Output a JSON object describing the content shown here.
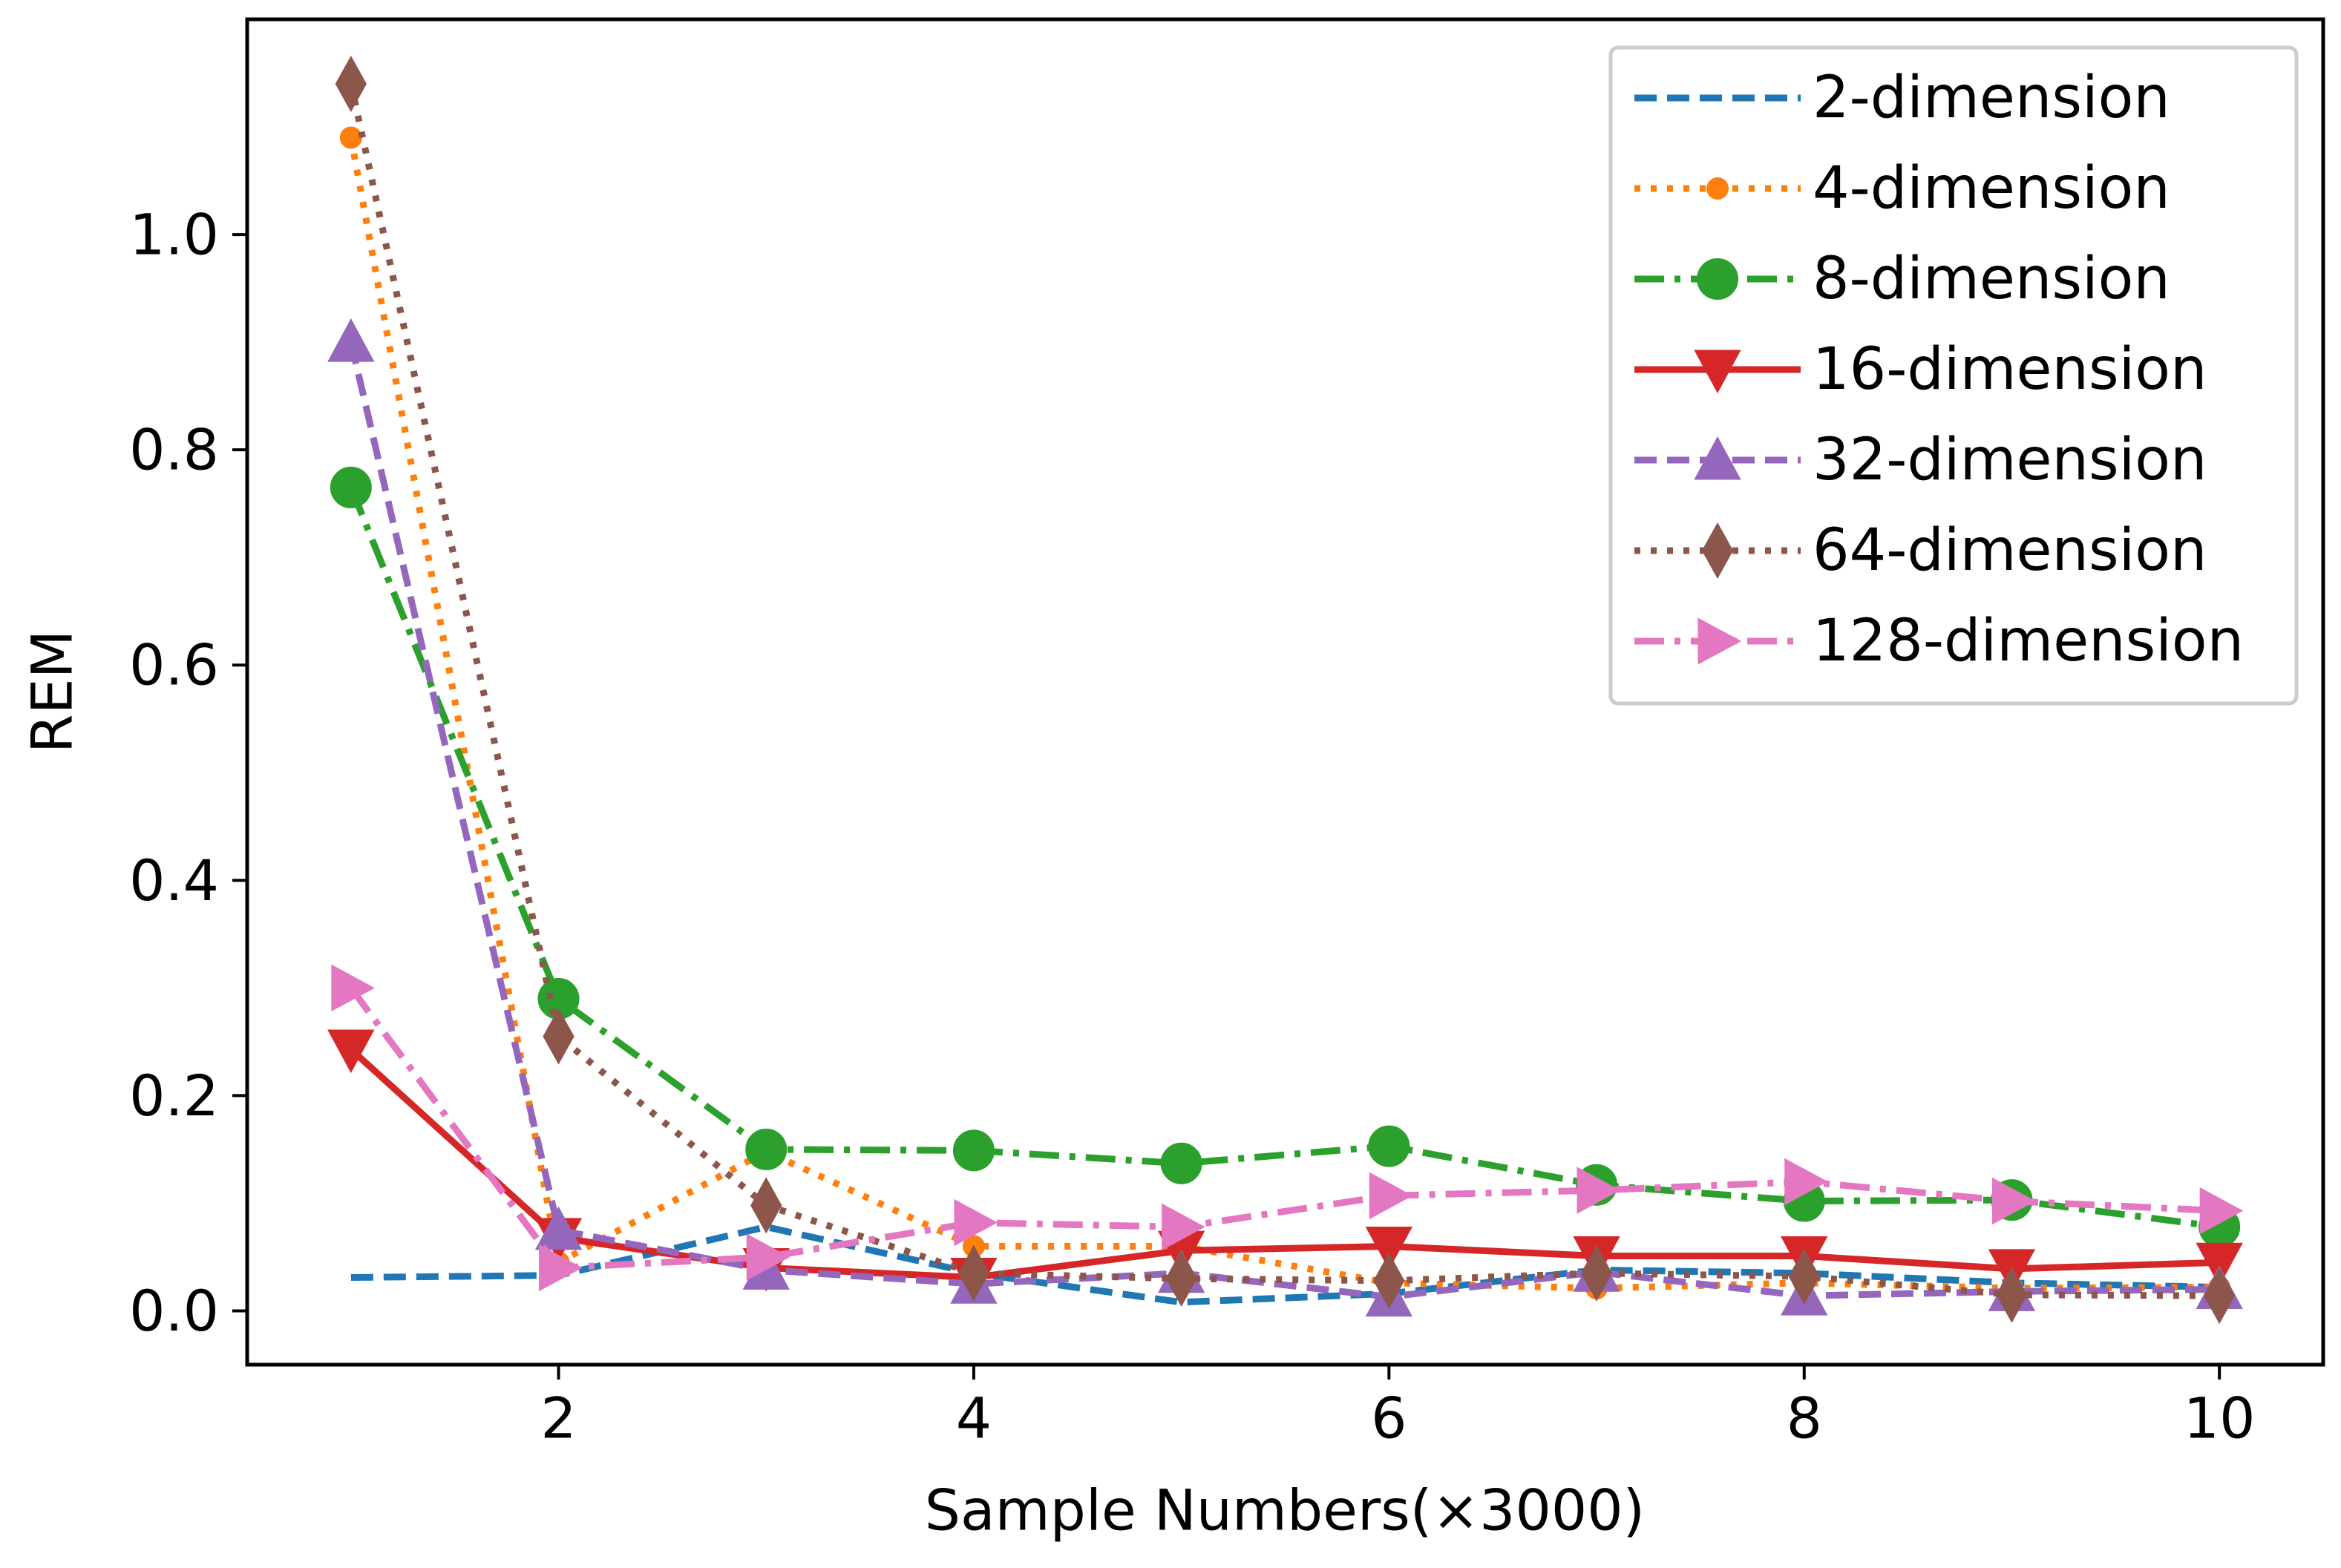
{
  "chart_data": {
    "type": "line",
    "title": "",
    "xlabel": "Sample Numbers(×3000)",
    "ylabel": "REM",
    "x": [
      1,
      2,
      3,
      4,
      5,
      6,
      7,
      8,
      9,
      10
    ],
    "xlim": [
      0.5,
      10.5
    ],
    "ylim": [
      -0.05,
      1.2
    ],
    "xticks": [
      2,
      4,
      6,
      8,
      10
    ],
    "xtick_labels": [
      "2",
      "4",
      "6",
      "8",
      "10"
    ],
    "yticks": [
      0.0,
      0.2,
      0.4,
      0.6,
      0.8,
      1.0
    ],
    "ytick_labels": [
      "0.0",
      "0.2",
      "0.4",
      "0.6",
      "0.8",
      "1.0"
    ],
    "grid": false,
    "legend_position": "top-right",
    "series": [
      {
        "name": "2-dimension",
        "color": "#1f77b4",
        "linestyle": "dashed",
        "marker": "none",
        "values": [
          0.031,
          0.033,
          0.078,
          0.035,
          0.008,
          0.016,
          0.038,
          0.035,
          0.026,
          0.022
        ]
      },
      {
        "name": "4-dimension",
        "color": "#ff7f0e",
        "linestyle": "dotted",
        "marker": "point",
        "values": [
          1.09,
          0.045,
          0.148,
          0.06,
          0.06,
          0.026,
          0.021,
          0.026,
          0.021,
          0.022
        ]
      },
      {
        "name": "8-dimension",
        "color": "#2ca02c",
        "linestyle": "dashdot",
        "marker": "circle",
        "values": [
          0.765,
          0.29,
          0.15,
          0.149,
          0.137,
          0.153,
          0.117,
          0.102,
          0.103,
          0.078
        ]
      },
      {
        "name": "16-dimension",
        "color": "#d62728",
        "linestyle": "solid",
        "marker": "triangle-down",
        "values": [
          0.243,
          0.068,
          0.04,
          0.031,
          0.056,
          0.06,
          0.051,
          0.051,
          0.039,
          0.045
        ]
      },
      {
        "name": "32-dimension",
        "color": "#9467bd",
        "linestyle": "dashed",
        "marker": "triangle-up",
        "values": [
          0.9,
          0.075,
          0.038,
          0.025,
          0.035,
          0.013,
          0.036,
          0.014,
          0.018,
          0.02
        ]
      },
      {
        "name": "64-dimension",
        "color": "#8c564b",
        "linestyle": "dotted",
        "marker": "diamond",
        "values": [
          1.14,
          0.255,
          0.098,
          0.035,
          0.03,
          0.028,
          0.035,
          0.032,
          0.015,
          0.014
        ]
      },
      {
        "name": "128-dimension",
        "color": "#e377c2",
        "linestyle": "dashdot",
        "marker": "triangle-right",
        "values": [
          0.3,
          0.04,
          0.05,
          0.082,
          0.078,
          0.107,
          0.112,
          0.12,
          0.102,
          0.093
        ]
      }
    ]
  }
}
